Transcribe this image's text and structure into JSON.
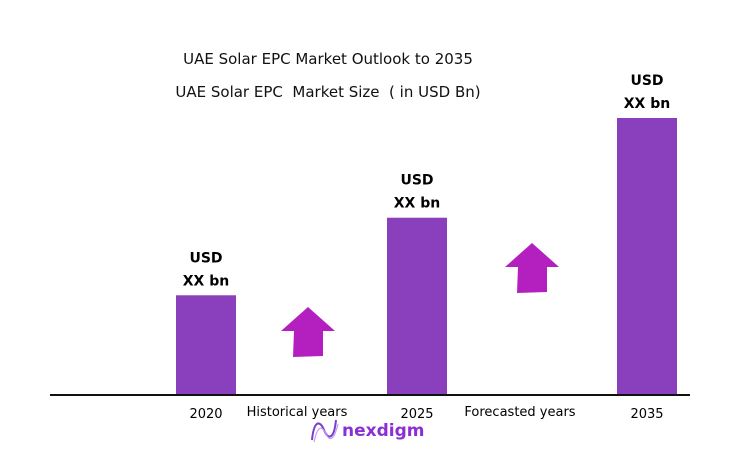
{
  "chart_data": {
    "type": "bar",
    "title": "UAE Solar EPC Market Outlook to 2035",
    "subtitle": "UAE Solar EPC  Market Size  ( in USD Bn)",
    "categories": [
      "2020",
      "2025",
      "2035"
    ],
    "values": [
      36,
      64,
      100
    ],
    "value_units": "relative bar height (2035 = 100); actual values not shown",
    "data_labels": [
      [
        "USD",
        "XX bn"
      ],
      [
        "USD",
        "XX bn"
      ],
      [
        "USD",
        "XX bn"
      ]
    ],
    "period_labels": [
      "Historical years",
      "Forecasted years"
    ],
    "grid": false,
    "colors": {
      "bar": "#8a3fbd",
      "arrow": "#b41fbf",
      "axis": "#111111"
    }
  },
  "logo": {
    "text": "nexdigm"
  }
}
